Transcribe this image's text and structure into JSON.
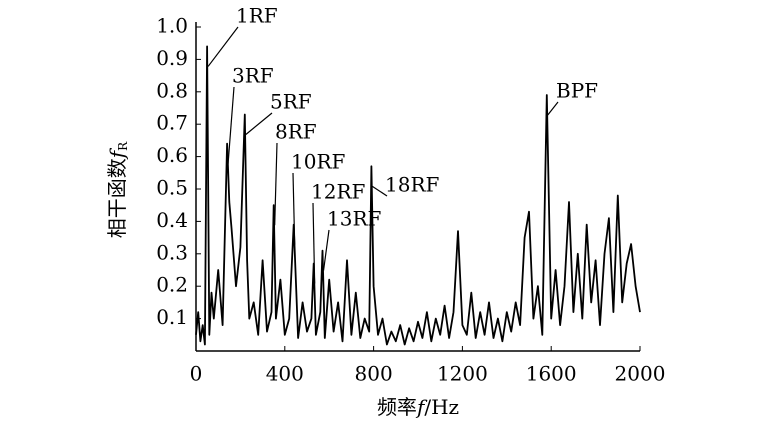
{
  "chart_data": {
    "type": "line",
    "ylabel": {
      "text": "相干函数",
      "var": "f",
      "sub": "R"
    },
    "xlabel": {
      "text": "频率",
      "var": "f",
      "unit": "/Hz"
    },
    "color": "#000000",
    "x": [
      0,
      10,
      20,
      30,
      40,
      50,
      60,
      70,
      80,
      100,
      120,
      140,
      150,
      160,
      180,
      200,
      220,
      230,
      240,
      260,
      280,
      300,
      320,
      340,
      350,
      360,
      380,
      400,
      420,
      440,
      460,
      480,
      500,
      520,
      530,
      540,
      560,
      570,
      580,
      600,
      620,
      640,
      660,
      680,
      700,
      720,
      740,
      760,
      780,
      790,
      800,
      820,
      840,
      860,
      880,
      900,
      920,
      940,
      960,
      980,
      1000,
      1020,
      1040,
      1060,
      1080,
      1100,
      1120,
      1140,
      1160,
      1180,
      1200,
      1220,
      1240,
      1260,
      1280,
      1300,
      1320,
      1340,
      1360,
      1380,
      1400,
      1420,
      1440,
      1460,
      1480,
      1500,
      1520,
      1540,
      1560,
      1580,
      1600,
      1620,
      1640,
      1660,
      1680,
      1700,
      1720,
      1740,
      1760,
      1780,
      1800,
      1820,
      1840,
      1860,
      1880,
      1900,
      1920,
      1940,
      1960,
      1980,
      2000
    ],
    "values": [
      0.05,
      0.12,
      0.03,
      0.08,
      0.02,
      0.94,
      0.05,
      0.18,
      0.1,
      0.25,
      0.08,
      0.64,
      0.46,
      0.38,
      0.2,
      0.32,
      0.73,
      0.28,
      0.1,
      0.15,
      0.05,
      0.28,
      0.06,
      0.12,
      0.45,
      0.1,
      0.22,
      0.05,
      0.1,
      0.39,
      0.04,
      0.15,
      0.06,
      0.1,
      0.27,
      0.05,
      0.12,
      0.31,
      0.04,
      0.22,
      0.06,
      0.15,
      0.03,
      0.28,
      0.05,
      0.18,
      0.04,
      0.1,
      0.06,
      0.57,
      0.2,
      0.05,
      0.1,
      0.02,
      0.06,
      0.03,
      0.08,
      0.02,
      0.07,
      0.03,
      0.09,
      0.04,
      0.12,
      0.03,
      0.1,
      0.05,
      0.14,
      0.04,
      0.12,
      0.37,
      0.08,
      0.05,
      0.18,
      0.04,
      0.12,
      0.05,
      0.15,
      0.04,
      0.1,
      0.03,
      0.12,
      0.06,
      0.15,
      0.08,
      0.35,
      0.43,
      0.1,
      0.2,
      0.05,
      0.79,
      0.1,
      0.25,
      0.08,
      0.2,
      0.46,
      0.12,
      0.3,
      0.1,
      0.39,
      0.15,
      0.28,
      0.08,
      0.3,
      0.41,
      0.12,
      0.48,
      0.15,
      0.27,
      0.33,
      0.2,
      0.12
    ],
    "xlim": [
      0,
      2000
    ],
    "xticks": [
      0,
      400,
      800,
      1200,
      1600,
      2000
    ],
    "ylim": [
      0,
      1
    ],
    "yticks": [
      0.1,
      0.2,
      0.3,
      0.4,
      0.5,
      0.6,
      0.7,
      0.8,
      0.9,
      {
        "value": 1,
        "label": "1.0"
      }
    ],
    "annotations": [
      {
        "text": "1RF",
        "x": 50,
        "y": 0.94
      },
      {
        "text": "3RF",
        "x": 140,
        "y": 0.64
      },
      {
        "text": "5RF",
        "x": 220,
        "y": 0.73
      },
      {
        "text": "8RF",
        "x": 350,
        "y": 0.45
      },
      {
        "text": "10RF",
        "x": 440,
        "y": 0.39
      },
      {
        "text": "12RF",
        "x": 530,
        "y": 0.27
      },
      {
        "text": "13RF",
        "x": 570,
        "y": 0.31
      },
      {
        "text": "18RF",
        "x": 790,
        "y": 0.57
      },
      {
        "text": "BPF",
        "x": 1580,
        "y": 0.79
      }
    ]
  }
}
